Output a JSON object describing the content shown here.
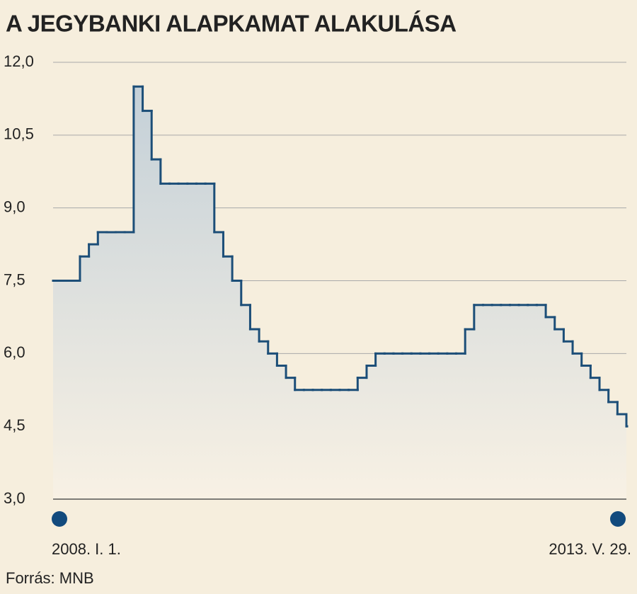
{
  "chart_data": {
    "type": "step",
    "title": "A JEGYBANKI ALAPKAMAT ALAKULÁSA",
    "source": "Forrás: MNB",
    "categories": [
      "2008. I. 1.",
      null,
      null,
      null,
      null,
      null,
      null,
      null,
      null,
      null,
      null,
      null,
      null,
      null,
      null,
      null,
      null,
      null,
      null,
      null,
      null,
      null,
      null,
      null,
      null,
      null,
      null,
      null,
      null,
      null,
      null,
      null,
      null,
      null,
      null,
      null,
      null,
      null,
      null,
      null,
      null,
      null,
      null,
      null,
      null,
      null,
      null,
      null,
      null,
      null,
      null,
      null,
      null,
      null,
      null,
      null,
      null,
      null,
      null,
      null,
      null,
      null,
      null,
      null,
      "2013. V. 29."
    ],
    "values": [
      7.5,
      7.5,
      7.5,
      8.0,
      8.25,
      8.5,
      8.5,
      8.5,
      8.5,
      11.5,
      11.0,
      10.0,
      9.5,
      9.5,
      9.5,
      9.5,
      9.5,
      9.5,
      8.5,
      8.0,
      7.5,
      7.0,
      6.5,
      6.25,
      6.0,
      5.75,
      5.5,
      5.25,
      5.25,
      5.25,
      5.25,
      5.25,
      5.25,
      5.25,
      5.5,
      5.75,
      6.0,
      6.0,
      6.0,
      6.0,
      6.0,
      6.0,
      6.0,
      6.0,
      6.0,
      6.0,
      6.5,
      7.0,
      7.0,
      7.0,
      7.0,
      7.0,
      7.0,
      7.0,
      7.0,
      6.75,
      6.5,
      6.25,
      6.0,
      5.75,
      5.5,
      5.25,
      5.0,
      4.75,
      4.5
    ],
    "color": "#1c4e78",
    "ylim": [
      3.0,
      12.0
    ],
    "yticks": [
      {
        "value": 3.0,
        "label": "3,0"
      },
      {
        "value": 4.5,
        "label": "4,5"
      },
      {
        "value": 6.0,
        "label": "6,0"
      },
      {
        "value": 7.5,
        "label": "7,5"
      },
      {
        "value": 9.0,
        "label": "9,0"
      },
      {
        "value": 10.5,
        "label": "10,5"
      },
      {
        "value": 12.0,
        "label": "12,0"
      }
    ],
    "grid": true
  }
}
